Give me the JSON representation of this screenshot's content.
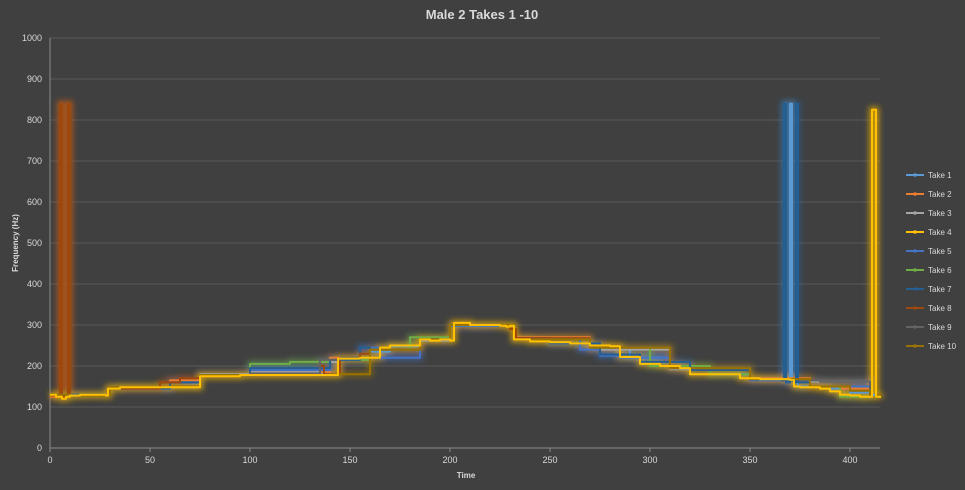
{
  "chart_data": {
    "type": "line",
    "title": "Male 2 Takes 1 -10",
    "xlabel": "Time",
    "ylabel": "Frequency (Hz)",
    "xlim": [
      0,
      415
    ],
    "ylim": [
      0,
      1000
    ],
    "xticks": [
      0,
      50,
      100,
      150,
      200,
      250,
      300,
      350,
      400
    ],
    "yticks": [
      0,
      100,
      200,
      300,
      400,
      500,
      600,
      700,
      800,
      900,
      1000
    ],
    "grid": true,
    "legend_position": "right",
    "series": [
      {
        "name": "Take 1",
        "color": "#5b9bd5",
        "x": [
          0,
          10,
          30,
          60,
          75,
          100,
          140,
          145,
          160,
          170,
          185,
          200,
          220,
          232,
          250,
          270,
          290,
          310,
          330,
          350,
          366,
          367,
          368,
          369,
          370,
          371,
          372,
          373,
          374,
          390,
          400,
          410,
          413
        ],
        "y": [
          130,
          128,
          148,
          150,
          178,
          180,
          180,
          218,
          235,
          248,
          265,
          298,
          300,
          265,
          255,
          245,
          220,
          195,
          180,
          170,
          165,
          840,
          160,
          165,
          840,
          165,
          160,
          160,
          150,
          145,
          135,
          130,
          128
        ]
      },
      {
        "name": "Take 2",
        "color": "#ed7d31",
        "x": [
          0,
          4,
          5,
          6,
          8,
          9,
          10,
          30,
          60,
          75,
          100,
          140,
          160,
          185,
          200,
          232,
          270,
          310,
          350,
          380,
          395,
          410
        ],
        "y": [
          125,
          130,
          840,
          125,
          128,
          840,
          128,
          145,
          165,
          178,
          185,
          220,
          240,
          265,
          300,
          270,
          245,
          195,
          170,
          150,
          145,
          130
        ]
      },
      {
        "name": "Take 3",
        "color": "#a5a5a5",
        "x": [
          0,
          10,
          30,
          60,
          75,
          100,
          135,
          145,
          160,
          185,
          200,
          232,
          270,
          310,
          350,
          380,
          410
        ],
        "y": [
          130,
          128,
          145,
          150,
          180,
          185,
          210,
          220,
          240,
          262,
          300,
          268,
          240,
          192,
          168,
          162,
          130
        ]
      },
      {
        "name": "Take 4",
        "color": "#ffc000",
        "x": [
          0,
          3,
          6,
          8,
          10,
          15,
          20,
          28,
          29,
          35,
          50,
          60,
          70,
          74,
          75,
          95,
          110,
          130,
          143,
          144,
          155,
          165,
          170,
          182,
          185,
          190,
          195,
          200,
          202,
          210,
          220,
          225,
          228,
          230,
          232,
          240,
          250,
          260,
          270,
          280,
          283,
          285,
          290,
          295,
          305,
          315,
          320,
          340,
          345,
          355,
          365,
          370,
          372,
          375,
          385,
          390,
          395,
          400,
          405,
          410,
          411,
          412,
          413,
          415
        ],
        "y": [
          130,
          125,
          120,
          125,
          128,
          130,
          130,
          128,
          145,
          148,
          148,
          148,
          148,
          148,
          175,
          178,
          178,
          178,
          178,
          218,
          220,
          245,
          250,
          250,
          265,
          262,
          265,
          262,
          305,
          300,
          300,
          298,
          296,
          298,
          265,
          260,
          258,
          255,
          250,
          248,
          248,
          222,
          222,
          205,
          200,
          195,
          180,
          180,
          170,
          168,
          168,
          166,
          150,
          148,
          145,
          138,
          130,
          128,
          125,
          125,
          825,
          825,
          125,
          122
        ]
      },
      {
        "name": "Take 5",
        "color": "#4472c4",
        "x": [
          0,
          10,
          30,
          60,
          75,
          100,
          140,
          155,
          165,
          185,
          200,
          232,
          265,
          275,
          285,
          310,
          350,
          380,
          410
        ],
        "y": [
          128,
          130,
          145,
          160,
          178,
          190,
          215,
          245,
          220,
          265,
          298,
          265,
          240,
          225,
          220,
          195,
          165,
          150,
          128
        ]
      },
      {
        "name": "Take 6",
        "color": "#70ad47",
        "x": [
          0,
          10,
          30,
          60,
          75,
          100,
          120,
          140,
          160,
          180,
          200,
          232,
          270,
          283,
          300,
          330,
          350,
          380,
          395,
          410
        ],
        "y": [
          130,
          128,
          148,
          150,
          178,
          205,
          210,
          215,
          240,
          270,
          300,
          265,
          245,
          245,
          200,
          180,
          168,
          150,
          125,
          125
        ]
      },
      {
        "name": "Take 7",
        "color": "#255e91",
        "x": [
          0,
          10,
          30,
          60,
          75,
          100,
          140,
          155,
          160,
          185,
          200,
          232,
          250,
          275,
          295,
          320,
          350,
          366,
          367,
          368,
          370,
          372,
          373,
          374,
          380,
          400,
          410
        ],
        "y": [
          128,
          130,
          145,
          160,
          178,
          195,
          215,
          245,
          240,
          265,
          300,
          268,
          255,
          228,
          210,
          190,
          168,
          165,
          840,
          160,
          165,
          160,
          840,
          160,
          150,
          140,
          128
        ]
      },
      {
        "name": "Take 8",
        "color": "#9e480e",
        "x": [
          0,
          4,
          5,
          6,
          7,
          8,
          9,
          10,
          30,
          55,
          60,
          65,
          75,
          100,
          135,
          137,
          145,
          155,
          160,
          185,
          200,
          230,
          233,
          270,
          310,
          350,
          380,
          400,
          410
        ],
        "y": [
          128,
          128,
          840,
          125,
          128,
          125,
          840,
          128,
          145,
          160,
          160,
          170,
          178,
          180,
          200,
          180,
          220,
          230,
          240,
          265,
          300,
          290,
          268,
          245,
          195,
          168,
          150,
          140,
          128
        ]
      },
      {
        "name": "Take 9",
        "color": "#636363",
        "x": [
          0,
          10,
          30,
          60,
          75,
          100,
          135,
          145,
          160,
          185,
          200,
          232,
          270,
          310,
          350,
          375,
          385,
          410
        ],
        "y": [
          130,
          128,
          148,
          150,
          178,
          182,
          215,
          220,
          240,
          265,
          300,
          265,
          245,
          195,
          168,
          165,
          162,
          130
        ]
      },
      {
        "name": "Take 10",
        "color": "#997300",
        "x": [
          0,
          10,
          30,
          60,
          75,
          100,
          140,
          160,
          185,
          200,
          232,
          270,
          310,
          350,
          380,
          400,
          410,
          411,
          412,
          413,
          415
        ],
        "y": [
          130,
          128,
          148,
          150,
          178,
          178,
          180,
          240,
          265,
          300,
          265,
          245,
          195,
          168,
          150,
          140,
          130,
          825,
          825,
          130,
          125
        ]
      }
    ]
  }
}
